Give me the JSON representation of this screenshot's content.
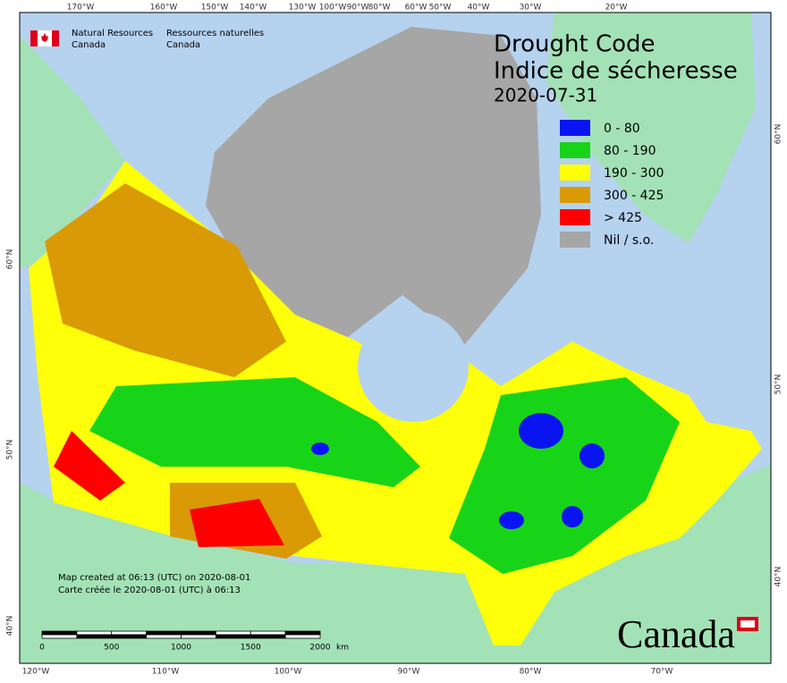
{
  "header": {
    "org_en": [
      "Natural Resources",
      "Canada"
    ],
    "org_fr": [
      "Ressources naturelles",
      "Canada"
    ]
  },
  "title": {
    "line1": "Drought Code",
    "line2": "Indice de sécheresse",
    "date": "2020-07-31"
  },
  "legend": [
    {
      "label": "0 - 80",
      "color": "#0a14f0"
    },
    {
      "label": "80 - 190",
      "color": "#18d418"
    },
    {
      "label": "190 - 300",
      "color": "#ffff0a"
    },
    {
      "label": "300 - 425",
      "color": "#d99a06"
    },
    {
      "label": "> 425",
      "color": "#ff0000"
    },
    {
      "label": "Nil / s.o.",
      "color": "#a6a6a6"
    }
  ],
  "graticule": {
    "top": [
      "170°W",
      "160°W",
      "150°W",
      "140°W",
      "130°W",
      "100°W",
      "90°W",
      "80°W",
      "60°W",
      "50°W",
      "40°W",
      "30°W",
      "20°W"
    ],
    "bottom": [
      "120°W",
      "110°W",
      "100°W",
      "90°W",
      "80°W",
      "70°W"
    ],
    "left": [
      "60°N",
      "50°N",
      "40°N"
    ],
    "right": [
      "60°N",
      "50°N",
      "40°N"
    ]
  },
  "notes": [
    "Map created at 06:13 (UTC) on 2020-08-01",
    "Carte créée le 2020-08-01 (UTC) à 06:13"
  ],
  "scale_bar": {
    "labels": [
      "0",
      "500",
      "1000",
      "1500",
      "2000"
    ],
    "unit": "km"
  },
  "wordmark": "Canada"
}
